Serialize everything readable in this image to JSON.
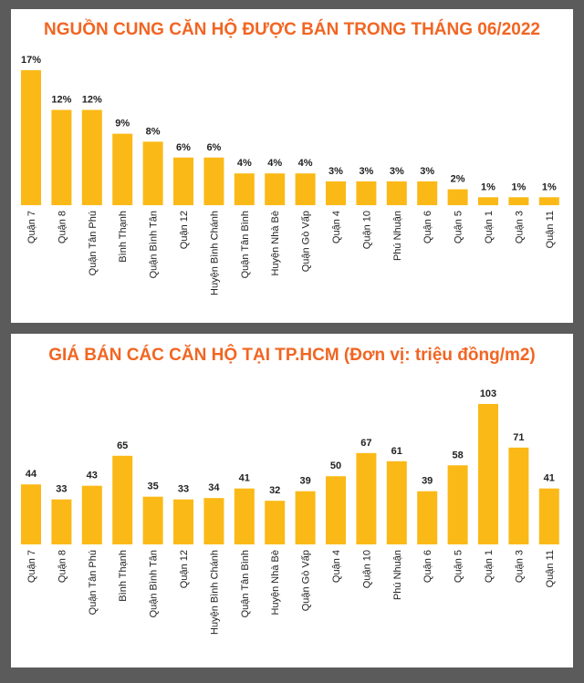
{
  "chart_data": [
    {
      "type": "bar",
      "title": "NGUỒN CUNG CĂN HỘ ĐƯỢC BÁN TRONG THÁNG 06/2022",
      "categories": [
        "Quận 7",
        "Quận 8",
        "Quận Tân Phú",
        "Bình Thạnh",
        "Quận Bình Tân",
        "Quận 12",
        "Huyện Bình Chánh",
        "Quận Tân Bình",
        "Huyện Nhà Bè",
        "Quận Gò Vấp",
        "Quận 4",
        "Quận 10",
        "Phú Nhuận",
        "Quận 6",
        "Quận 5",
        "Quận 1",
        "Quận 3",
        "Quận 11"
      ],
      "values": [
        17,
        12,
        12,
        9,
        8,
        6,
        6,
        4,
        4,
        4,
        3,
        3,
        3,
        3,
        2,
        1,
        1,
        1
      ],
      "value_labels": [
        "17%",
        "12%",
        "12%",
        "9%",
        "8%",
        "6%",
        "6%",
        "4%",
        "4%",
        "4%",
        "3%",
        "3%",
        "3%",
        "3%",
        "2%",
        "1%",
        "1%",
        "1%"
      ],
      "color": "#fbb917"
    },
    {
      "type": "bar",
      "title": "GIÁ BÁN CÁC CĂN HỘ TẠI TP.HCM (Đơn vị: triệu đồng/m2)",
      "categories": [
        "Quận 7",
        "Quận 8",
        "Quận Tân Phú",
        "Bình Thạnh",
        "Quận Bình Tân",
        "Quận 12",
        "Huyện Bình Chánh",
        "Quận Tân Bình",
        "Huyện Nhà Bè",
        "Quận Gò Vấp",
        "Quận 4",
        "Quận 10",
        "Phú Nhuận",
        "Quận 6",
        "Quận 5",
        "Quận 1",
        "Quận 3",
        "Quận 11"
      ],
      "values": [
        44,
        33,
        43,
        65,
        35,
        33,
        34,
        41,
        32,
        39,
        50,
        67,
        61,
        39,
        58,
        103,
        71,
        41
      ],
      "color": "#fbb917"
    }
  ]
}
